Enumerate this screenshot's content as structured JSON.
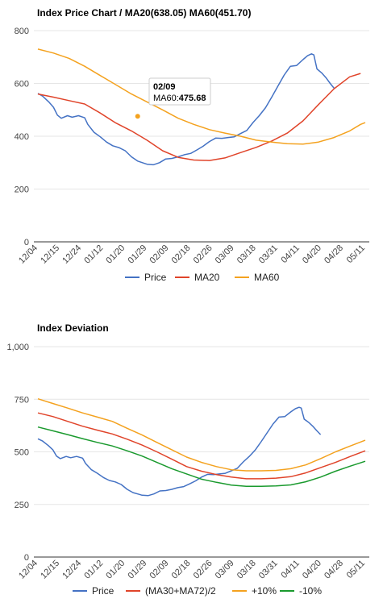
{
  "chart_data": [
    {
      "type": "line",
      "title": "Index Price Chart / MA20(638.05) MA60(451.70)",
      "ylim": [
        0,
        800
      ],
      "y_ticks": [
        "0",
        "200",
        "400",
        "600",
        "800"
      ],
      "x_tick_labels": [
        "12/04",
        "12/15",
        "12/24",
        "01/12",
        "01/20",
        "01/29",
        "02/09",
        "02/18",
        "02/26",
        "03/09",
        "03/18",
        "03/31",
        "04/11",
        "04/20",
        "04/28",
        "05/11"
      ],
      "grid": true,
      "legend_position": "bottom",
      "tooltip": {
        "date": "02/09",
        "series_label": "MA60:",
        "value": "475.68",
        "x_index": 6.4
      },
      "series": [
        {
          "name": "Price",
          "color": "#4472c4",
          "points": [
            [
              0,
              562
            ],
            [
              0.3,
              552
            ],
            [
              0.7,
              530
            ],
            [
              1.0,
              510
            ],
            [
              1.25,
              480
            ],
            [
              1.5,
              468
            ],
            [
              1.9,
              478
            ],
            [
              2.2,
              472
            ],
            [
              2.6,
              478
            ],
            [
              3.0,
              470
            ],
            [
              3.2,
              445
            ],
            [
              3.6,
              415
            ],
            [
              4.0,
              398
            ],
            [
              4.4,
              378
            ],
            [
              4.8,
              364
            ],
            [
              5.2,
              357
            ],
            [
              5.6,
              345
            ],
            [
              6.0,
              322
            ],
            [
              6.4,
              306
            ],
            [
              6.8,
              298
            ],
            [
              7.0,
              294
            ],
            [
              7.4,
              292
            ],
            [
              7.8,
              300
            ],
            [
              8.2,
              314
            ],
            [
              8.6,
              316
            ],
            [
              9.0,
              322
            ],
            [
              9.4,
              330
            ],
            [
              9.8,
              335
            ],
            [
              10.2,
              348
            ],
            [
              10.6,
              362
            ],
            [
              11.0,
              380
            ],
            [
              11.4,
              393
            ],
            [
              11.8,
              392
            ],
            [
              12.2,
              395
            ],
            [
              12.6,
              398
            ],
            [
              13.0,
              410
            ],
            [
              13.4,
              422
            ],
            [
              13.8,
              452
            ],
            [
              14.2,
              478
            ],
            [
              14.6,
              508
            ],
            [
              15.0,
              548
            ],
            [
              15.4,
              590
            ],
            [
              15.8,
              632
            ],
            [
              16.2,
              665
            ],
            [
              16.6,
              668
            ],
            [
              17.0,
              690
            ],
            [
              17.3,
              705
            ],
            [
              17.55,
              712
            ],
            [
              17.7,
              708
            ],
            [
              17.9,
              655
            ],
            [
              18.2,
              640
            ],
            [
              18.5,
              620
            ],
            [
              18.75,
              600
            ],
            [
              19.0,
              582
            ]
          ]
        },
        {
          "name": "MA20",
          "color": "#e0442a",
          "points": [
            [
              0,
              560
            ],
            [
              1.0,
              548
            ],
            [
              2.0,
              535
            ],
            [
              3.0,
              522
            ],
            [
              4.0,
              488
            ],
            [
              5.0,
              450
            ],
            [
              6.0,
              420
            ],
            [
              7.0,
              385
            ],
            [
              8.0,
              345
            ],
            [
              9.0,
              320
            ],
            [
              10.0,
              310
            ],
            [
              11.0,
              308
            ],
            [
              12.0,
              318
            ],
            [
              13.0,
              338
            ],
            [
              14.0,
              358
            ],
            [
              15.0,
              382
            ],
            [
              16.0,
              412
            ],
            [
              17.0,
              458
            ],
            [
              18.0,
              520
            ],
            [
              19.0,
              580
            ],
            [
              20.0,
              625
            ],
            [
              20.7,
              638
            ]
          ]
        },
        {
          "name": "MA60",
          "color": "#f4a21f",
          "points": [
            [
              0,
              730
            ],
            [
              1.0,
              715
            ],
            [
              2.0,
              695
            ],
            [
              3.0,
              665
            ],
            [
              4.0,
              630
            ],
            [
              5.0,
              595
            ],
            [
              6.0,
              560
            ],
            [
              7.0,
              530
            ],
            [
              8.0,
              500
            ],
            [
              9.0,
              468
            ],
            [
              10.0,
              445
            ],
            [
              11.0,
              425
            ],
            [
              12.0,
              412
            ],
            [
              13.0,
              400
            ],
            [
              14.0,
              385
            ],
            [
              15.0,
              378
            ],
            [
              16.0,
              372
            ],
            [
              17.0,
              370
            ],
            [
              18.0,
              378
            ],
            [
              19.0,
              395
            ],
            [
              20.0,
              420
            ],
            [
              20.7,
              445
            ],
            [
              21.0,
              451.7
            ]
          ]
        }
      ]
    },
    {
      "type": "line",
      "title": "Index Deviation",
      "ylim": [
        0,
        1000
      ],
      "y_ticks": [
        "0",
        "250",
        "500",
        "750",
        "1,000"
      ],
      "x_tick_labels": [
        "12/04",
        "12/15",
        "12/24",
        "01/12",
        "01/20",
        "01/29",
        "02/09",
        "02/18",
        "02/26",
        "03/09",
        "03/18",
        "03/31",
        "04/11",
        "04/20",
        "04/28",
        "05/11"
      ],
      "grid": true,
      "legend_position": "bottom",
      "series": [
        {
          "name": "Price",
          "color": "#4472c4",
          "points": [
            [
              0,
              562
            ],
            [
              0.3,
              552
            ],
            [
              0.7,
              530
            ],
            [
              1.0,
              510
            ],
            [
              1.25,
              480
            ],
            [
              1.5,
              468
            ],
            [
              1.9,
              478
            ],
            [
              2.2,
              472
            ],
            [
              2.6,
              478
            ],
            [
              3.0,
              470
            ],
            [
              3.2,
              445
            ],
            [
              3.6,
              415
            ],
            [
              4.0,
              398
            ],
            [
              4.4,
              378
            ],
            [
              4.8,
              364
            ],
            [
              5.2,
              357
            ],
            [
              5.6,
              345
            ],
            [
              6.0,
              322
            ],
            [
              6.4,
              306
            ],
            [
              6.8,
              298
            ],
            [
              7.0,
              294
            ],
            [
              7.4,
              292
            ],
            [
              7.8,
              300
            ],
            [
              8.2,
              314
            ],
            [
              8.6,
              316
            ],
            [
              9.0,
              322
            ],
            [
              9.4,
              330
            ],
            [
              9.8,
              335
            ],
            [
              10.2,
              348
            ],
            [
              10.6,
              362
            ],
            [
              11.0,
              380
            ],
            [
              11.4,
              393
            ],
            [
              11.8,
              392
            ],
            [
              12.2,
              395
            ],
            [
              12.6,
              398
            ],
            [
              13.0,
              410
            ],
            [
              13.4,
              422
            ],
            [
              13.8,
              452
            ],
            [
              14.2,
              478
            ],
            [
              14.6,
              508
            ],
            [
              15.0,
              548
            ],
            [
              15.4,
              590
            ],
            [
              15.8,
              632
            ],
            [
              16.2,
              665
            ],
            [
              16.6,
              668
            ],
            [
              17.0,
              690
            ],
            [
              17.3,
              705
            ],
            [
              17.55,
              712
            ],
            [
              17.7,
              708
            ],
            [
              17.9,
              655
            ],
            [
              18.2,
              640
            ],
            [
              18.5,
              620
            ],
            [
              18.75,
              600
            ],
            [
              19.0,
              582
            ]
          ]
        },
        {
          "name": "(MA30+MA72)/2",
          "color": "#e0442a",
          "points": [
            [
              0,
              685
            ],
            [
              1.0,
              668
            ],
            [
              2.0,
              645
            ],
            [
              3.0,
              622
            ],
            [
              4.0,
              603
            ],
            [
              5.0,
              585
            ],
            [
              6.0,
              560
            ],
            [
              7.0,
              532
            ],
            [
              8.0,
              500
            ],
            [
              9.0,
              465
            ],
            [
              10.0,
              430
            ],
            [
              11.0,
              408
            ],
            [
              12.0,
              392
            ],
            [
              13.0,
              380
            ],
            [
              14.0,
              372
            ],
            [
              15.0,
              372
            ],
            [
              16.0,
              375
            ],
            [
              17.0,
              382
            ],
            [
              18.0,
              400
            ],
            [
              19.0,
              425
            ],
            [
              20.0,
              450
            ],
            [
              21.0,
              478
            ],
            [
              22.0,
              505
            ]
          ]
        },
        {
          "name": "+10%",
          "color": "#f4a21f",
          "points": [
            [
              0,
              752
            ],
            [
              1.0,
              730
            ],
            [
              2.0,
              708
            ],
            [
              3.0,
              685
            ],
            [
              4.0,
              665
            ],
            [
              5.0,
              645
            ],
            [
              6.0,
              612
            ],
            [
              7.0,
              580
            ],
            [
              8.0,
              545
            ],
            [
              9.0,
              510
            ],
            [
              10.0,
              475
            ],
            [
              11.0,
              450
            ],
            [
              12.0,
              430
            ],
            [
              13.0,
              415
            ],
            [
              14.0,
              410
            ],
            [
              15.0,
              410
            ],
            [
              16.0,
              412
            ],
            [
              17.0,
              420
            ],
            [
              18.0,
              438
            ],
            [
              19.0,
              468
            ],
            [
              20.0,
              500
            ],
            [
              21.0,
              528
            ],
            [
              22.0,
              555
            ]
          ]
        },
        {
          "name": "-10%",
          "color": "#1a9a2e",
          "points": [
            [
              0,
              618
            ],
            [
              1.0,
              600
            ],
            [
              2.0,
              582
            ],
            [
              3.0,
              563
            ],
            [
              4.0,
              545
            ],
            [
              5.0,
              528
            ],
            [
              6.0,
              505
            ],
            [
              7.0,
              480
            ],
            [
              8.0,
              450
            ],
            [
              9.0,
              420
            ],
            [
              10.0,
              395
            ],
            [
              11.0,
              370
            ],
            [
              12.0,
              355
            ],
            [
              13.0,
              342
            ],
            [
              14.0,
              336
            ],
            [
              15.0,
              336
            ],
            [
              16.0,
              338
            ],
            [
              17.0,
              343
            ],
            [
              18.0,
              358
            ],
            [
              19.0,
              380
            ],
            [
              20.0,
              408
            ],
            [
              21.0,
              432
            ],
            [
              22.0,
              455
            ]
          ]
        }
      ]
    }
  ]
}
